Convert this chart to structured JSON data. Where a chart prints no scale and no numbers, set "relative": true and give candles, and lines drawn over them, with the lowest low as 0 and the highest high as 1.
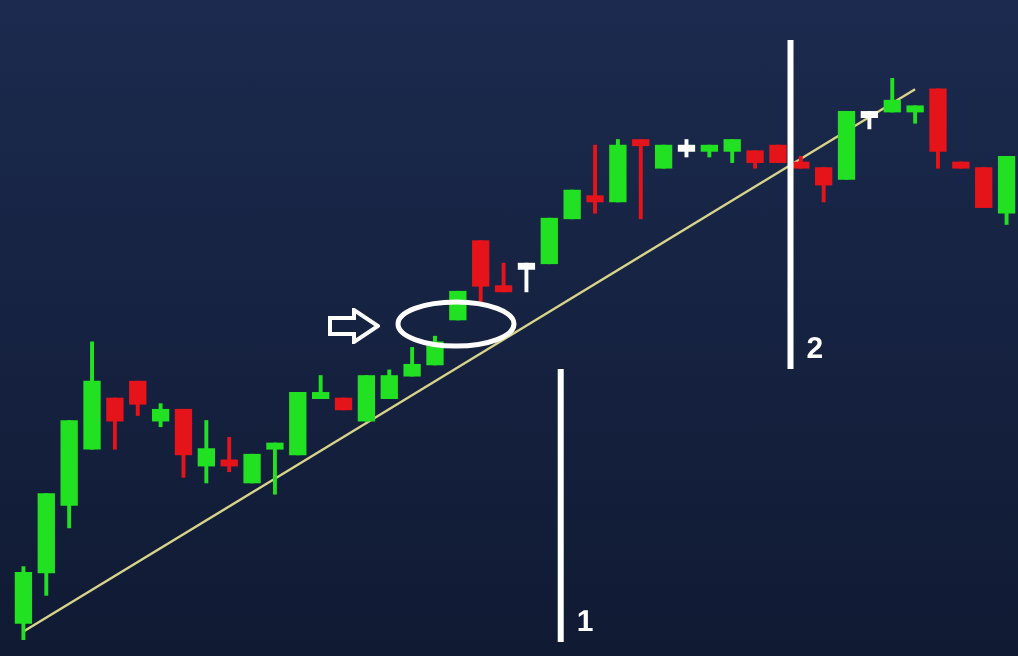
{
  "chart_data": {
    "type": "candlestick",
    "relative": true,
    "tick_labels": false,
    "legend": false,
    "categories": [
      null,
      null,
      null,
      null,
      null,
      null,
      null,
      null,
      null,
      null,
      null,
      null,
      null,
      null,
      null,
      null,
      null,
      null,
      null,
      null,
      null,
      null,
      null,
      null,
      null,
      null,
      null,
      null,
      null,
      null,
      null,
      null,
      null,
      null,
      null,
      null,
      null,
      null,
      null,
      null,
      null,
      null,
      null,
      null
    ],
    "ohlc": [
      [
        0.03,
        0.13,
        0,
        0.12
      ],
      [
        0.12,
        0.26,
        0.08,
        0.26
      ],
      [
        0.24,
        0.39,
        0.2,
        0.39
      ],
      [
        0.34,
        0.53,
        0.34,
        0.46
      ],
      [
        0.43,
        0.43,
        0.34,
        0.39
      ],
      [
        0.46,
        0.46,
        0.4,
        0.42
      ],
      [
        0.39,
        0.42,
        0.38,
        0.41
      ],
      [
        0.41,
        0.41,
        0.29,
        0.33
      ],
      [
        0.31,
        0.39,
        0.28,
        0.34
      ],
      [
        0.32,
        0.36,
        0.3,
        0.31
      ],
      [
        0.28,
        0.33,
        0.28,
        0.33
      ],
      [
        0.34,
        0.35,
        0.26,
        0.35
      ],
      [
        0.33,
        0.44,
        0.33,
        0.44
      ],
      [
        0.43,
        0.47,
        0.43,
        0.44
      ],
      [
        0.43,
        0.43,
        0.41,
        0.41
      ],
      [
        0.39,
        0.47,
        0.39,
        0.47
      ],
      [
        0.43,
        0.48,
        0.43,
        0.47
      ],
      [
        0.47,
        0.52,
        0.47,
        0.49
      ],
      [
        0.49,
        0.54,
        0.49,
        0.53
      ],
      [
        0.57,
        0.62,
        0.57,
        0.62
      ],
      [
        0.71,
        0.71,
        0.6,
        0.63
      ],
      [
        0.63,
        0.67,
        0.62,
        0.62
      ],
      [
        0.67,
        0.67,
        0.62,
        0.66
      ],
      [
        0.67,
        0.75,
        0.67,
        0.75
      ],
      [
        0.75,
        0.8,
        0.75,
        0.8
      ],
      [
        0.79,
        0.88,
        0.76,
        0.78
      ],
      [
        0.78,
        0.89,
        0.78,
        0.88
      ],
      [
        0.89,
        0.89,
        0.75,
        0.88
      ],
      [
        0.84,
        0.88,
        0.84,
        0.88
      ],
      [
        0.88,
        0.89,
        0.86,
        0.87
      ],
      [
        0.87,
        0.88,
        0.86,
        0.88
      ],
      [
        0.87,
        0.89,
        0.85,
        0.89
      ],
      [
        0.87,
        0.87,
        0.84,
        0.85
      ],
      [
        0.88,
        0.88,
        0.85,
        0.85
      ],
      [
        0.85,
        0.86,
        0.84,
        0.84
      ],
      [
        0.84,
        0.84,
        0.78,
        0.81
      ],
      [
        0.82,
        0.94,
        0.82,
        0.94
      ],
      [
        0.94,
        0.94,
        0.91,
        0.93
      ],
      [
        0.94,
        1,
        0.94,
        0.96
      ],
      [
        0.94,
        0.95,
        0.92,
        0.95
      ],
      [
        0.98,
        0.98,
        0.84,
        0.87
      ],
      [
        0.85,
        0.85,
        0.84,
        0.84
      ],
      [
        0.84,
        0.84,
        0.77,
        0.77
      ],
      [
        0.76,
        0.86,
        0.74,
        0.86
      ]
    ],
    "colors": [
      "#22e022",
      "#22e022",
      "#22e022",
      "#22e022",
      "#e5141b",
      "#e5141b",
      "#22e022",
      "#e5141b",
      "#22e022",
      "#e5141b",
      "#22e022",
      "#22e022",
      "#22e022",
      "#22e022",
      "#e5141b",
      "#22e022",
      "#22e022",
      "#22e022",
      "#22e022",
      "#22e022",
      "#e5141b",
      "#e5141b",
      "#ffffff",
      "#22e022",
      "#22e022",
      "#e5141b",
      "#22e022",
      "#e5141b",
      "#22e022",
      "#ffffff",
      "#22e022",
      "#22e022",
      "#e5141b",
      "#e5141b",
      "#e5141b",
      "#e5141b",
      "#22e022",
      "#ffffff",
      "#22e022",
      "#22e022",
      "#e5141b",
      "#e5141b",
      "#e5141b",
      "#22e022"
    ],
    "series": [
      {
        "type": "line",
        "color": "#d8d48a",
        "values": [
          0.015,
          null,
          null,
          null,
          null,
          null,
          null,
          null,
          null,
          null,
          null,
          null,
          null,
          null,
          null,
          null,
          null,
          null,
          null,
          null,
          null,
          null,
          null,
          null,
          null,
          null,
          null,
          null,
          null,
          null,
          null,
          null,
          null,
          null,
          null,
          null,
          null,
          null,
          null,
          0.98,
          null,
          null,
          null,
          null
        ]
      }
    ],
    "annotations": [
      "1",
      "2"
    ]
  }
}
